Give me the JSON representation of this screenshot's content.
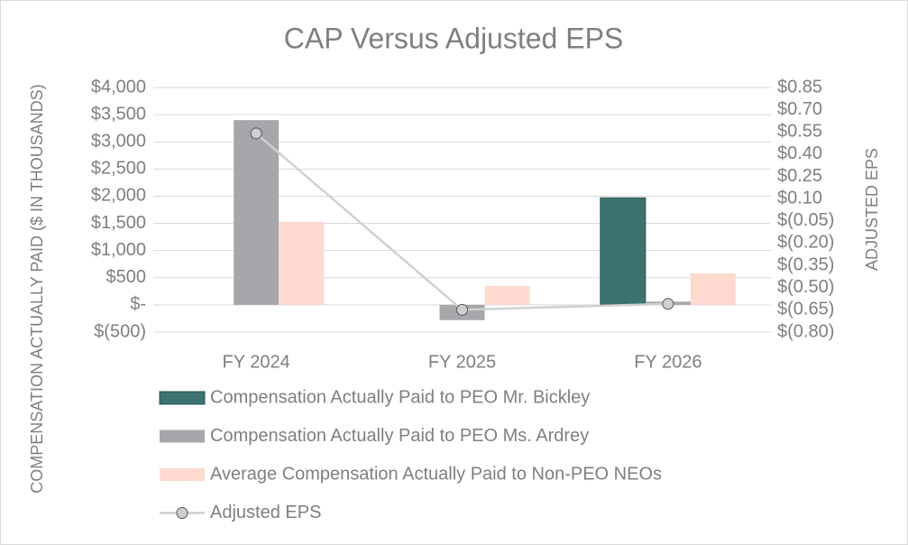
{
  "chart_data": {
    "type": "bar",
    "title": "CAP Versus Adjusted EPS",
    "ylabel": "COMPENSATION ACTUALLY PAID ($ IN THOUSANDS)",
    "y2label": "ADJUSTED EPS",
    "categories": [
      "FY 2024",
      "FY 2025",
      "FY 2026"
    ],
    "series": [
      {
        "name": "Compensation Actually Paid to PEO Mr. Bickley",
        "color": "#3a7370",
        "values": [
          null,
          null,
          1970
        ]
      },
      {
        "name": "Compensation Actually Paid to PEO Ms. Ardrey",
        "color": "#a6a7ab",
        "values": [
          3400,
          -280,
          60
        ]
      },
      {
        "name": "Average Compensation Actually Paid to Non-PEO NEOs",
        "color": "#fdd9d0",
        "values": [
          1530,
          350,
          580
        ]
      },
      {
        "name": "Adjusted EPS",
        "color": "#d0d0d0",
        "type": "line",
        "axis": "y2",
        "values": [
          0.54,
          -0.65,
          -0.61
        ]
      }
    ],
    "ylim": [
      -500,
      4000
    ],
    "yticks": [
      {
        "value": -500,
        "label": "$(500)"
      },
      {
        "value": 0,
        "label": "$-"
      },
      {
        "value": 500,
        "label": "$500"
      },
      {
        "value": 1000,
        "label": "$1,000"
      },
      {
        "value": 1500,
        "label": "$1,500"
      },
      {
        "value": 2000,
        "label": "$2,000"
      },
      {
        "value": 2500,
        "label": "$2,500"
      },
      {
        "value": 3000,
        "label": "$3,000"
      },
      {
        "value": 3500,
        "label": "$3,500"
      },
      {
        "value": 4000,
        "label": "$4,000"
      }
    ],
    "y2lim": [
      -0.8,
      0.85
    ],
    "y2ticks": [
      {
        "value": -0.8,
        "label": "$(0.80)"
      },
      {
        "value": -0.65,
        "label": "$(0.65)"
      },
      {
        "value": -0.5,
        "label": "$(0.50)"
      },
      {
        "value": -0.35,
        "label": "$(0.35)"
      },
      {
        "value": -0.2,
        "label": "$(0.20)"
      },
      {
        "value": -0.05,
        "label": "$(0.05)"
      },
      {
        "value": 0.1,
        "label": "$0.10"
      },
      {
        "value": 0.25,
        "label": "$0.25"
      },
      {
        "value": 0.4,
        "label": "$0.40"
      },
      {
        "value": 0.55,
        "label": "$0.55"
      },
      {
        "value": 0.7,
        "label": "$0.70"
      },
      {
        "value": 0.85,
        "label": "$0.85"
      }
    ],
    "grid": true,
    "legend": "bottom"
  }
}
